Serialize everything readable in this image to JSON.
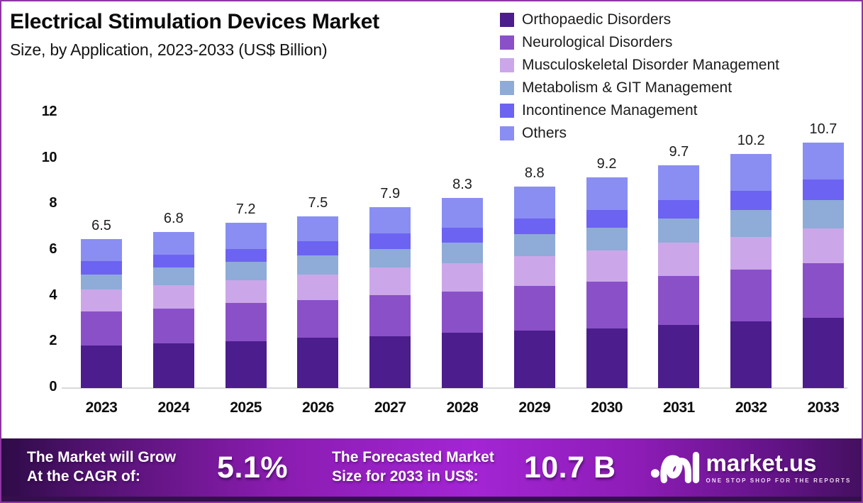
{
  "page": {
    "title": "Electrical Stimulation Devices Market",
    "subtitle": "Size, by Application, 2023-2033 (US$ Billion)"
  },
  "chart_data": {
    "type": "bar",
    "stacked": true,
    "title": "Electrical Stimulation Devices Market Size, by Application, 2023-2033 (US$ Billion)",
    "categories": [
      "2023",
      "2024",
      "2025",
      "2026",
      "2027",
      "2028",
      "2029",
      "2030",
      "2031",
      "2032",
      "2033"
    ],
    "series": [
      {
        "name": "Orthopaedic Disorders",
        "color": "#4C1D8C",
        "values": [
          1.85,
          1.95,
          2.05,
          2.2,
          2.25,
          2.4,
          2.5,
          2.6,
          2.75,
          2.9,
          3.05
        ]
      },
      {
        "name": "Neurological Disorders",
        "color": "#8A50C8",
        "values": [
          1.5,
          1.5,
          1.65,
          1.65,
          1.8,
          1.8,
          1.95,
          2.05,
          2.15,
          2.25,
          2.4
        ]
      },
      {
        "name": "Musculoskeletal Disorder Management",
        "color": "#CBA7EA",
        "values": [
          0.95,
          1.05,
          1.0,
          1.1,
          1.2,
          1.25,
          1.3,
          1.35,
          1.45,
          1.45,
          1.5
        ]
      },
      {
        "name": "Metabolism & GIT Management",
        "color": "#8FABD8",
        "values": [
          0.65,
          0.75,
          0.8,
          0.85,
          0.8,
          0.9,
          0.95,
          1.0,
          1.05,
          1.15,
          1.25
        ]
      },
      {
        "name": "Incontinence Management",
        "color": "#6C63F2",
        "values": [
          0.6,
          0.55,
          0.55,
          0.6,
          0.7,
          0.65,
          0.7,
          0.75,
          0.8,
          0.85,
          0.9
        ]
      },
      {
        "name": "Others",
        "color": "#8A8EF2",
        "values": [
          0.95,
          1.0,
          1.15,
          1.1,
          1.15,
          1.3,
          1.4,
          1.45,
          1.5,
          1.6,
          1.6
        ]
      }
    ],
    "totals": [
      "6.5",
      "6.8",
      "7.2",
      "7.5",
      "7.9",
      "8.3",
      "8.8",
      "9.2",
      "9.7",
      "10.2",
      "10.7"
    ],
    "ylim": [
      0,
      12
    ],
    "yticks": [
      0,
      2,
      4,
      6,
      8,
      10,
      12
    ],
    "xlabel": "",
    "ylabel": "",
    "grid": false,
    "legend_position": "top-right"
  },
  "banner": {
    "cagr_label_line1": "The Market will Grow",
    "cagr_label_line2": "At the CAGR of:",
    "cagr_value": "5.1%",
    "forecast_label_line1": "The Forecasted Market",
    "forecast_label_line2": "Size for 2033 in US$:",
    "forecast_value": "10.7 B",
    "logo_text": "market.us",
    "logo_tagline": "ONE STOP SHOP FOR THE REPORTS"
  }
}
